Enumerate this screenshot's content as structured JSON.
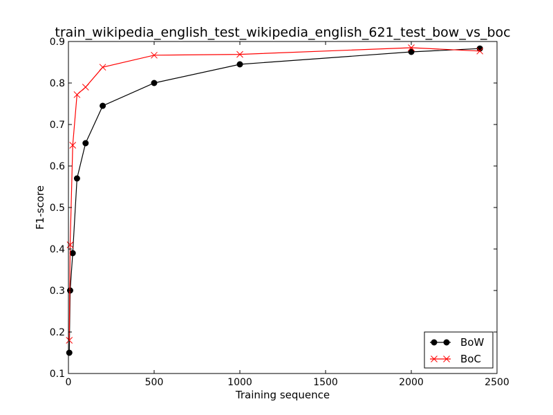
{
  "chart_data": {
    "type": "line",
    "title": "train_wikipedia_english_test_wikipedia_english_621_test_bow_vs_boc",
    "xlabel": "Training sequence",
    "ylabel": "F1-score",
    "xlim": [
      0,
      2500
    ],
    "ylim": [
      0.1,
      0.9
    ],
    "xticks": [
      0,
      500,
      1000,
      1500,
      2000,
      2500
    ],
    "yticks": [
      0.1,
      0.2,
      0.3,
      0.4,
      0.5,
      0.6,
      0.7,
      0.8,
      0.9
    ],
    "xtick_labels": [
      "0",
      "500",
      "1000",
      "1500",
      "2000",
      "2500"
    ],
    "ytick_labels": [
      "0.1",
      "0.2",
      "0.3",
      "0.4",
      "0.5",
      "0.6",
      "0.7",
      "0.8",
      "0.9"
    ],
    "grid": false,
    "legend_position": "bottom-right",
    "series": [
      {
        "name": "BoW",
        "color": "#000000",
        "marker": "circle",
        "x": [
          5,
          10,
          25,
          50,
          100,
          200,
          500,
          1000,
          2000,
          2400
        ],
        "y": [
          0.15,
          0.3,
          0.39,
          0.57,
          0.655,
          0.745,
          0.8,
          0.845,
          0.875,
          0.883
        ]
      },
      {
        "name": "BoC",
        "color": "#ff0000",
        "marker": "x",
        "x": [
          5,
          10,
          25,
          50,
          100,
          200,
          500,
          1000,
          2000,
          2400
        ],
        "y": [
          0.18,
          0.41,
          0.65,
          0.772,
          0.79,
          0.838,
          0.867,
          0.869,
          0.885,
          0.877
        ]
      }
    ]
  }
}
